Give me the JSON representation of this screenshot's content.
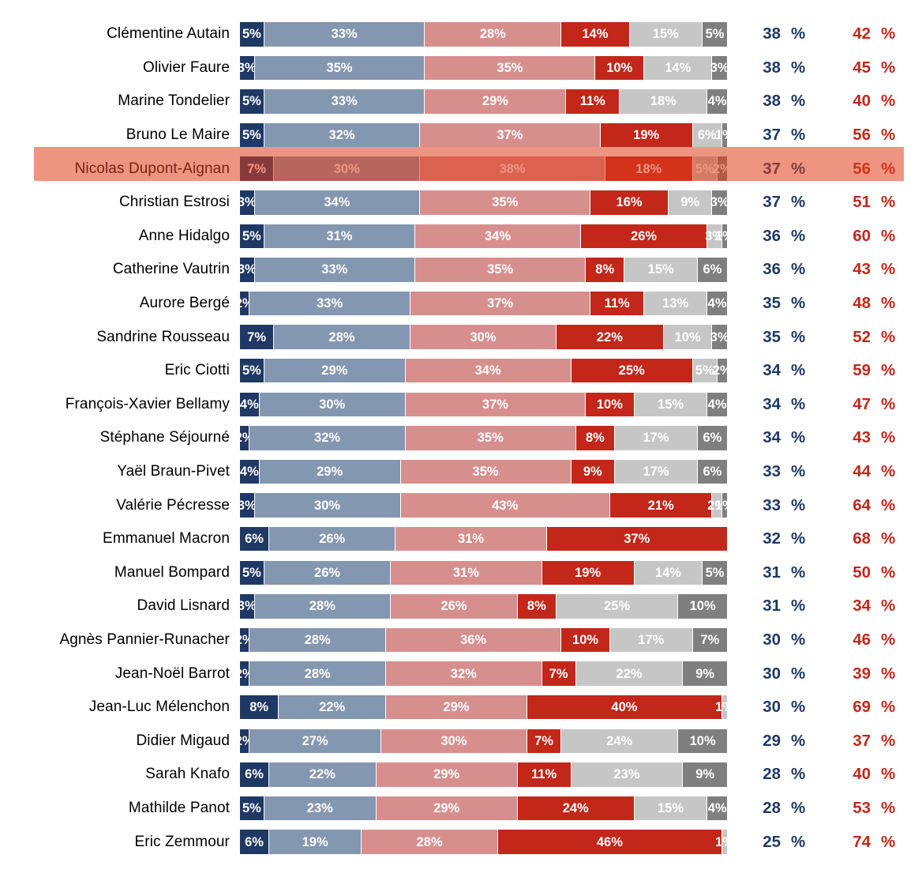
{
  "chart_data": {
    "type": "bar",
    "orientation": "horizontal",
    "stacked": true,
    "unit": "%",
    "grid": false,
    "legend": "none visible",
    "segment_colors": [
      "#1F3864",
      "#8497B0",
      "#D78F8E",
      "#C2271A",
      "#C6C6C6",
      "#7F7F7F"
    ],
    "positive_total_color": "#1F3864",
    "negative_total_color": "#C2271A",
    "percent_suffix": "%",
    "highlight": {
      "row_name": "Nicolas Dupont-Aignan",
      "row_index": 4,
      "overlay_color": "rgba(224,62,28,0.55)"
    },
    "rows": [
      {
        "name": "Clémentine Autain",
        "segments": [
          5,
          33,
          28,
          14,
          15,
          5
        ],
        "positive_total": 38,
        "negative_total": 42
      },
      {
        "name": "Olivier Faure",
        "segments": [
          3,
          35,
          35,
          10,
          14,
          3
        ],
        "positive_total": 38,
        "negative_total": 45
      },
      {
        "name": "Marine Tondelier",
        "segments": [
          5,
          33,
          29,
          11,
          18,
          4
        ],
        "positive_total": 38,
        "negative_total": 40
      },
      {
        "name": "Bruno Le Maire",
        "segments": [
          5,
          32,
          37,
          19,
          6,
          1
        ],
        "positive_total": 37,
        "negative_total": 56
      },
      {
        "name": "Nicolas Dupont-Aignan",
        "segments": [
          7,
          30,
          38,
          18,
          5,
          2
        ],
        "positive_total": 37,
        "negative_total": 56
      },
      {
        "name": "Christian Estrosi",
        "segments": [
          3,
          34,
          35,
          16,
          9,
          3
        ],
        "positive_total": 37,
        "negative_total": 51
      },
      {
        "name": "Anne Hidalgo",
        "segments": [
          5,
          31,
          34,
          26,
          3,
          1
        ],
        "positive_total": 36,
        "negative_total": 60
      },
      {
        "name": "Catherine Vautrin",
        "segments": [
          3,
          33,
          35,
          8,
          15,
          6
        ],
        "positive_total": 36,
        "negative_total": 43
      },
      {
        "name": "Aurore Bergé",
        "segments": [
          2,
          33,
          37,
          11,
          13,
          4
        ],
        "positive_total": 35,
        "negative_total": 48
      },
      {
        "name": "Sandrine Rousseau",
        "segments": [
          7,
          28,
          30,
          22,
          10,
          3
        ],
        "positive_total": 35,
        "negative_total": 52
      },
      {
        "name": "Eric Ciotti",
        "segments": [
          5,
          29,
          34,
          25,
          5,
          2
        ],
        "positive_total": 34,
        "negative_total": 59
      },
      {
        "name": "François-Xavier Bellamy",
        "segments": [
          4,
          30,
          37,
          10,
          15,
          4
        ],
        "positive_total": 34,
        "negative_total": 47
      },
      {
        "name": "Stéphane Séjourné",
        "segments": [
          2,
          32,
          35,
          8,
          17,
          6
        ],
        "positive_total": 34,
        "negative_total": 43
      },
      {
        "name": "Yaël Braun-Pivet",
        "segments": [
          4,
          29,
          35,
          9,
          17,
          6
        ],
        "positive_total": 33,
        "negative_total": 44
      },
      {
        "name": "Valérie Pécresse",
        "segments": [
          3,
          30,
          43,
          21,
          2,
          1
        ],
        "positive_total": 33,
        "negative_total": 64
      },
      {
        "name": "Emmanuel Macron",
        "segments": [
          6,
          26,
          31,
          37,
          0,
          0
        ],
        "positive_total": 32,
        "negative_total": 68
      },
      {
        "name": "Manuel Bompard",
        "segments": [
          5,
          26,
          31,
          19,
          14,
          5
        ],
        "positive_total": 31,
        "negative_total": 50
      },
      {
        "name": "David Lisnard",
        "segments": [
          3,
          28,
          26,
          8,
          25,
          10
        ],
        "positive_total": 31,
        "negative_total": 34
      },
      {
        "name": "Agnès Pannier-Runacher",
        "segments": [
          2,
          28,
          36,
          10,
          17,
          7
        ],
        "positive_total": 30,
        "negative_total": 46
      },
      {
        "name": "Jean-Noël Barrot",
        "segments": [
          2,
          28,
          32,
          7,
          22,
          9
        ],
        "positive_total": 30,
        "negative_total": 39
      },
      {
        "name": "Jean-Luc Mélenchon",
        "segments": [
          8,
          22,
          29,
          40,
          1,
          0
        ],
        "positive_total": 30,
        "negative_total": 69
      },
      {
        "name": "Didier Migaud",
        "segments": [
          2,
          27,
          30,
          7,
          24,
          10
        ],
        "positive_total": 29,
        "negative_total": 37
      },
      {
        "name": "Sarah Knafo",
        "segments": [
          6,
          22,
          29,
          11,
          23,
          9
        ],
        "positive_total": 28,
        "negative_total": 40
      },
      {
        "name": "Mathilde Panot",
        "segments": [
          5,
          23,
          29,
          24,
          15,
          4
        ],
        "positive_total": 28,
        "negative_total": 53
      },
      {
        "name": "Eric Zemmour",
        "segments": [
          6,
          19,
          28,
          46,
          1,
          0
        ],
        "positive_total": 25,
        "negative_total": 74
      }
    ]
  }
}
